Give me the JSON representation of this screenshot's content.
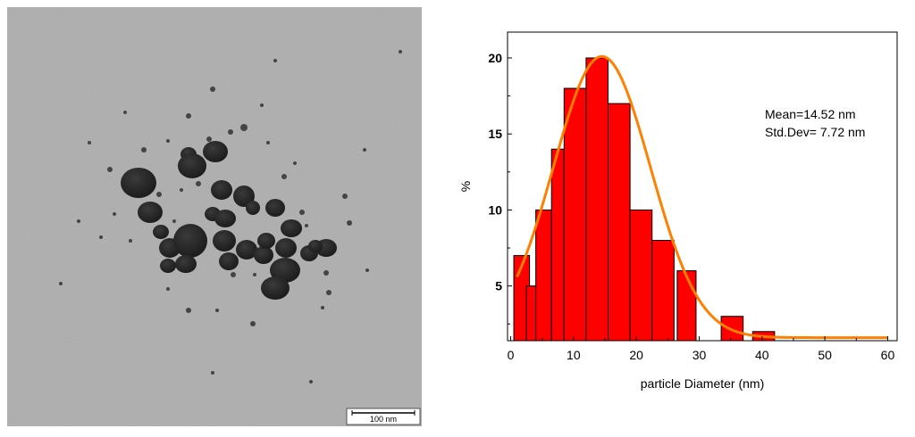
{
  "micrograph": {
    "scale_bar_label": "100 nm"
  },
  "chart_data": {
    "type": "bar",
    "xlabel": "particle Diameter (nm)",
    "ylabel": "%",
    "xlim": [
      -0.5,
      61.5
    ],
    "ylim": [
      1.4,
      21.7
    ],
    "xticks": [
      0,
      10,
      20,
      30,
      40,
      50,
      60
    ],
    "yticks": [
      5,
      10,
      15,
      20
    ],
    "bar_color": "#ff0000",
    "fit_color": "#ff8000",
    "bars": [
      {
        "x0": 0.5,
        "x1": 3.0,
        "value": 7
      },
      {
        "x0": 2.5,
        "x1": 4.5,
        "value": 5
      },
      {
        "x0": 4.0,
        "x1": 6.5,
        "value": 10
      },
      {
        "x0": 6.5,
        "x1": 8.5,
        "value": 14
      },
      {
        "x0": 8.5,
        "x1": 12.0,
        "value": 18
      },
      {
        "x0": 12.0,
        "x1": 15.5,
        "value": 20
      },
      {
        "x0": 15.5,
        "x1": 19.0,
        "value": 17
      },
      {
        "x0": 19.0,
        "x1": 22.5,
        "value": 10
      },
      {
        "x0": 22.5,
        "x1": 26.0,
        "value": 8
      },
      {
        "x0": 26.5,
        "x1": 29.5,
        "value": 6
      },
      {
        "x0": 33.5,
        "x1": 37.0,
        "value": 3
      },
      {
        "x0": 38.5,
        "x1": 42.0,
        "value": 2
      }
    ],
    "fit_curve": {
      "type": "gaussian",
      "center": 14.52,
      "amplitude": 20.1,
      "width": 7.72,
      "baseline": 1.6,
      "x_range": [
        1,
        60
      ]
    },
    "annotations": [
      "Mean=14.52 nm",
      "Std.Dev= 7.72 nm"
    ],
    "grid": false
  }
}
